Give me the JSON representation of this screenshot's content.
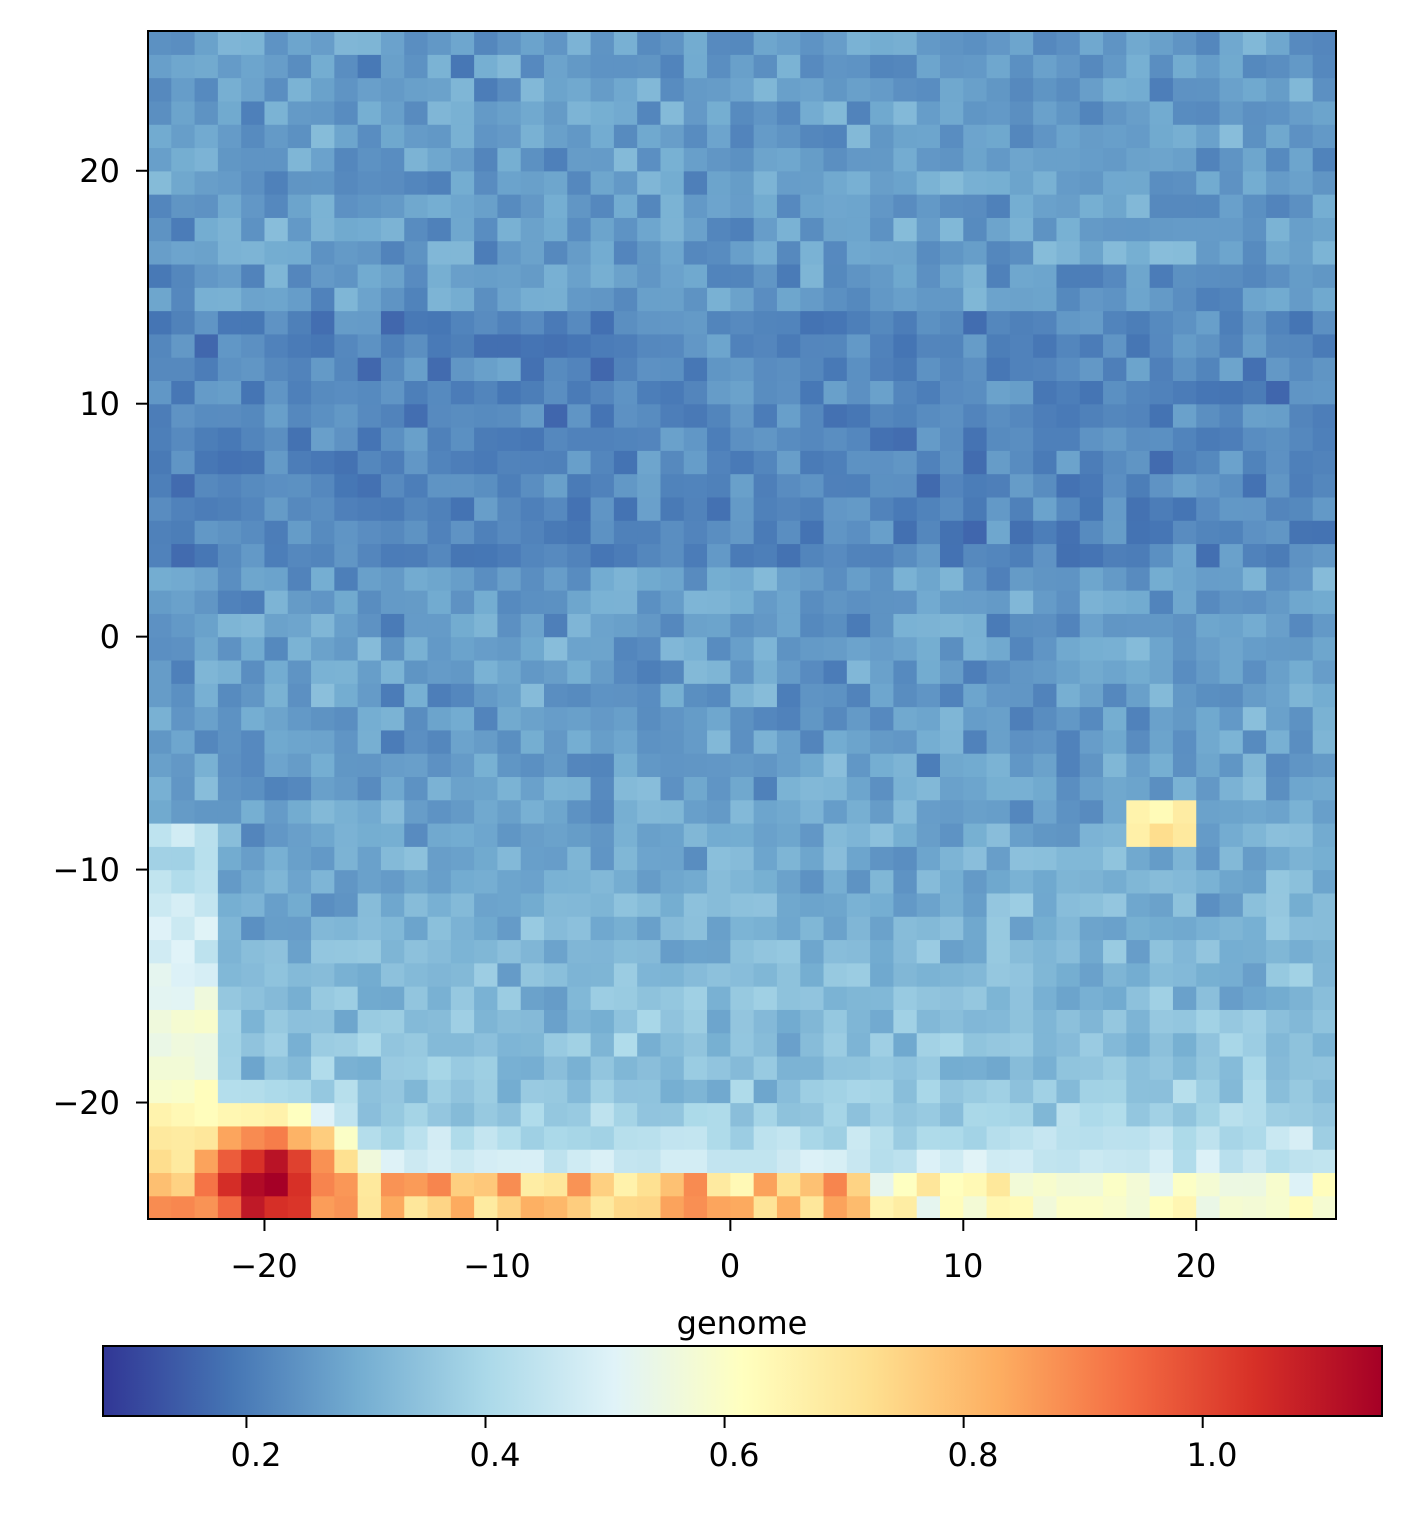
{
  "chart_data": {
    "type": "heatmap",
    "title": "",
    "xlabel": "",
    "ylabel": "",
    "x_range": [
      -25,
      26
    ],
    "y_range": [
      -25,
      26
    ],
    "x_ticks": [
      -20,
      -10,
      0,
      10,
      20
    ],
    "x_tick_labels": [
      "−20",
      "−10",
      "0",
      "10",
      "20"
    ],
    "y_ticks": [
      -20,
      -10,
      0,
      10,
      20
    ],
    "y_tick_labels": [
      "−20",
      "−10",
      "0",
      "10",
      "20"
    ],
    "grid": false,
    "colormap": "RdYlBu_r",
    "colormap_stops": [
      "#313695",
      "#4575b4",
      "#74add1",
      "#abd9e9",
      "#e0f3f8",
      "#ffffbf",
      "#fee090",
      "#fdae61",
      "#f46d43",
      "#d73027",
      "#a50026"
    ],
    "colorbar": {
      "label": "genome",
      "range": [
        0.08,
        1.15
      ],
      "ticks": [
        0.2,
        0.4,
        0.6,
        0.8,
        1.0
      ],
      "tick_labels": [
        "0.2",
        "0.4",
        "0.6",
        "0.8",
        "1.0"
      ],
      "orientation": "horizontal"
    },
    "grid_size": [
      51,
      51
    ],
    "value_summary": {
      "background_range": [
        0.15,
        0.35
      ],
      "upper_band_rows_y": [
        5,
        12
      ],
      "upper_band_value": 0.17,
      "corner_hotspot_center": [
        -20,
        -23.5
      ],
      "corner_hotspot_peak": 1.12,
      "bottom_edge_band_value": [
        0.65,
        0.9
      ],
      "local_spot_center": [
        18.5,
        -8
      ],
      "local_spot_value": 0.75
    }
  }
}
